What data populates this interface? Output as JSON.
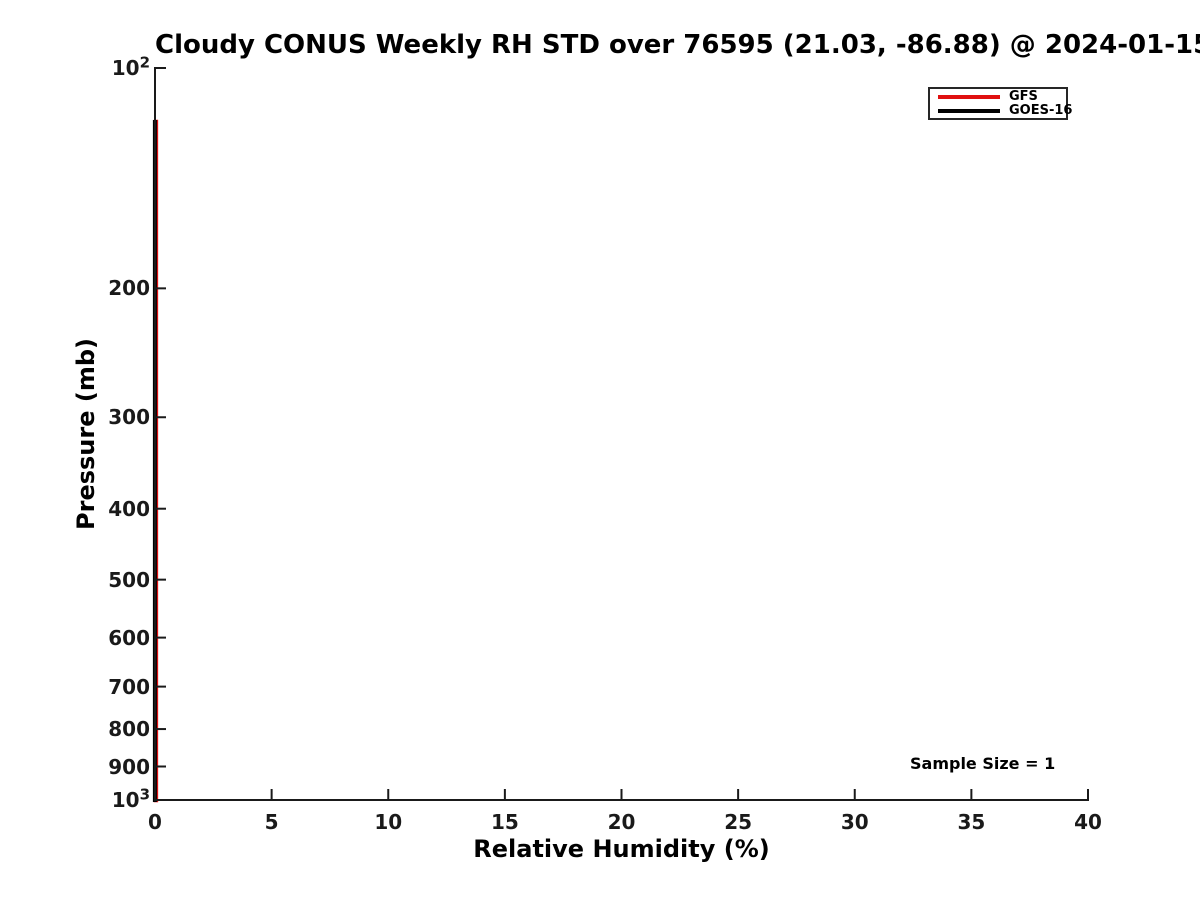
{
  "figure": {
    "background_color": "#ffffff",
    "text_color": "#000000",
    "axis_color": "#1a1a1a"
  },
  "chart_data": {
    "type": "line",
    "title": "Cloudy CONUS Weekly RH STD over 76595 (21.03, -86.88) @ 2024-01-15",
    "xlabel": "Relative Humidity (%)",
    "ylabel": "Pressure (mb)",
    "xlim": [
      0,
      40
    ],
    "x_ticks": [
      0,
      5,
      10,
      15,
      20,
      25,
      30,
      35,
      40
    ],
    "y_scale": "log",
    "y_inverted": true,
    "ylim": [
      100,
      1000
    ],
    "y_ticks": [
      100,
      200,
      300,
      400,
      500,
      600,
      700,
      800,
      900,
      1000
    ],
    "y_tick_labels": [
      "10^2",
      "200",
      "300",
      "400",
      "500",
      "600",
      "700",
      "800",
      "900",
      "10^3"
    ],
    "grid": false,
    "series": [
      {
        "name": "GFS",
        "color": "#e01010",
        "points": [
          {
            "rh_std_percent": 0,
            "pressure_mb": 118.5
          },
          {
            "rh_std_percent": 0,
            "pressure_mb": 1000
          }
        ]
      },
      {
        "name": "GOES-16",
        "color": "#000000",
        "points": [
          {
            "rh_std_percent": 0,
            "pressure_mb": 118.5
          },
          {
            "rh_std_percent": 0,
            "pressure_mb": 1000
          }
        ]
      }
    ],
    "legend": {
      "position": "upper right",
      "entries": [
        {
          "label": "GFS",
          "color": "#e01010"
        },
        {
          "label": "GOES-16",
          "color": "#000000"
        }
      ]
    },
    "annotations": [
      {
        "text": "Sample Size = 1",
        "x_rh_percent": 34.8,
        "y_pressure_mb": 890
      }
    ]
  }
}
